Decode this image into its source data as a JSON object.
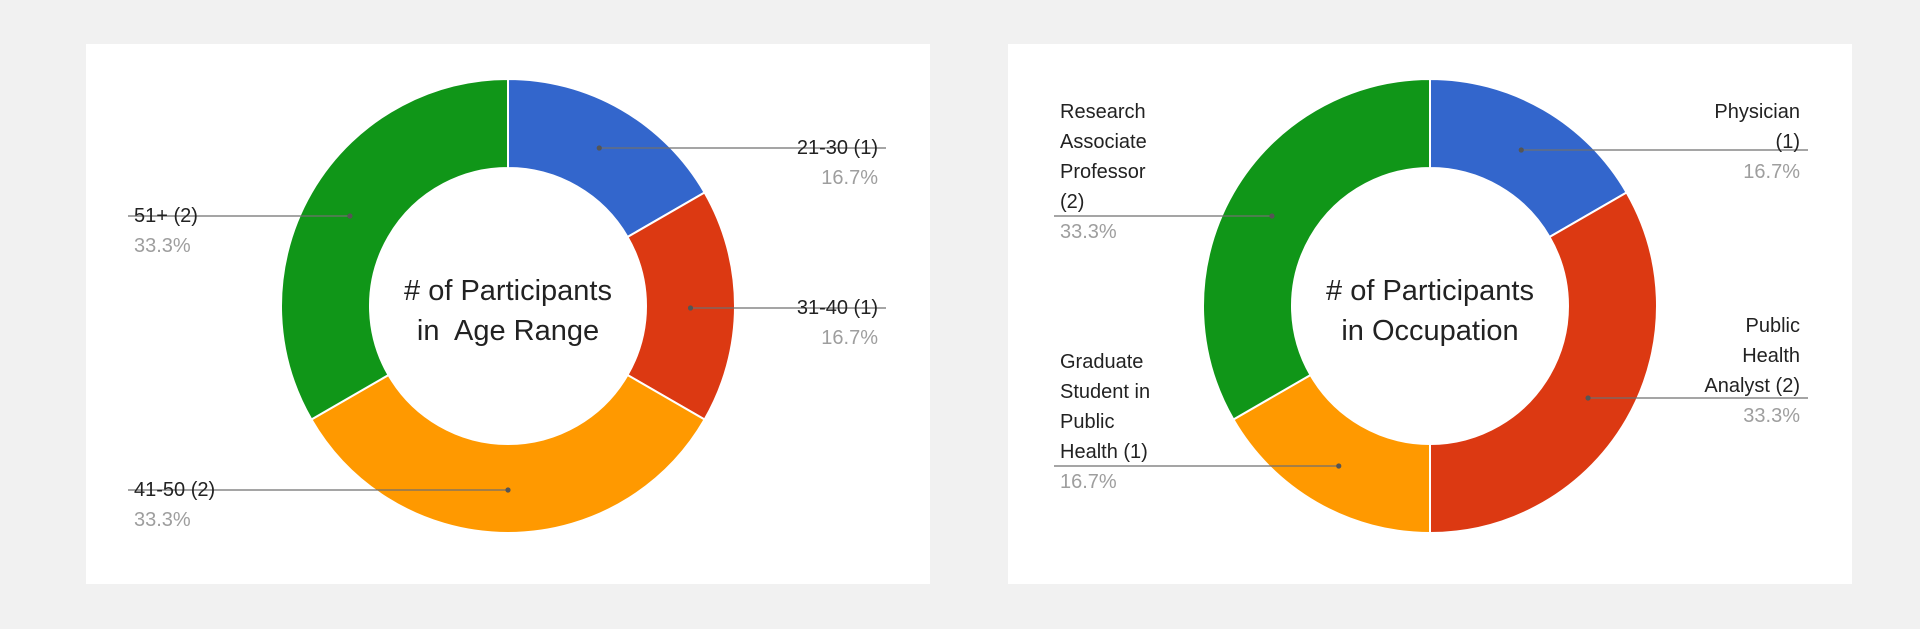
{
  "chart_data": [
    {
      "type": "pie",
      "donut": true,
      "center_label": [
        "# of Participants",
        "in  Age Range"
      ],
      "slices": [
        {
          "label": "21-30",
          "count": 1,
          "percent": "16.7%",
          "color": "#3366cc",
          "label_text": "21-30 (1)",
          "label_lines": [
            "21-30 (1)"
          ],
          "side": "right"
        },
        {
          "label": "31-40",
          "count": 1,
          "percent": "16.7%",
          "color": "#dc3912",
          "label_text": "31-40 (1)",
          "label_lines": [
            "31-40 (1)"
          ],
          "side": "right"
        },
        {
          "label": "41-50",
          "count": 2,
          "percent": "33.3%",
          "color": "#ff9900",
          "label_text": "41-50 (2)",
          "label_lines": [
            "41-50 (2)"
          ],
          "side": "left"
        },
        {
          "label": "51+",
          "count": 2,
          "percent": "33.3%",
          "color": "#109618",
          "label_text": "51+ (2)",
          "label_lines": [
            "51+ (2)"
          ],
          "side": "left"
        }
      ]
    },
    {
      "type": "pie",
      "donut": true,
      "center_label": [
        "# of Participants",
        "in Occupation"
      ],
      "slices": [
        {
          "label": "Physician",
          "count": 1,
          "percent": "16.7%",
          "color": "#3366cc",
          "label_text": "Physician (1)",
          "label_lines": [
            "Physician",
            "(1)"
          ],
          "side": "right"
        },
        {
          "label": "Public Health Analyst",
          "count": 2,
          "percent": "33.3%",
          "color": "#dc3912",
          "label_text": "Public Health Analyst (2)",
          "label_lines": [
            "Public",
            "Health",
            "Analyst (2)"
          ],
          "side": "right"
        },
        {
          "label": "Graduate Student in Public Health",
          "count": 1,
          "percent": "16.7%",
          "color": "#ff9900",
          "label_text": "Graduate Student in Public Health (1)",
          "label_lines": [
            "Graduate",
            "Student in",
            "Public",
            "Health (1)"
          ],
          "side": "left"
        },
        {
          "label": "Research Associate Professor",
          "count": 2,
          "percent": "33.3%",
          "color": "#109618",
          "label_text": "Research Associate Professor (2)",
          "label_lines": [
            "Research",
            "Associate",
            "Professor",
            "(2)"
          ],
          "side": "left"
        }
      ]
    }
  ]
}
